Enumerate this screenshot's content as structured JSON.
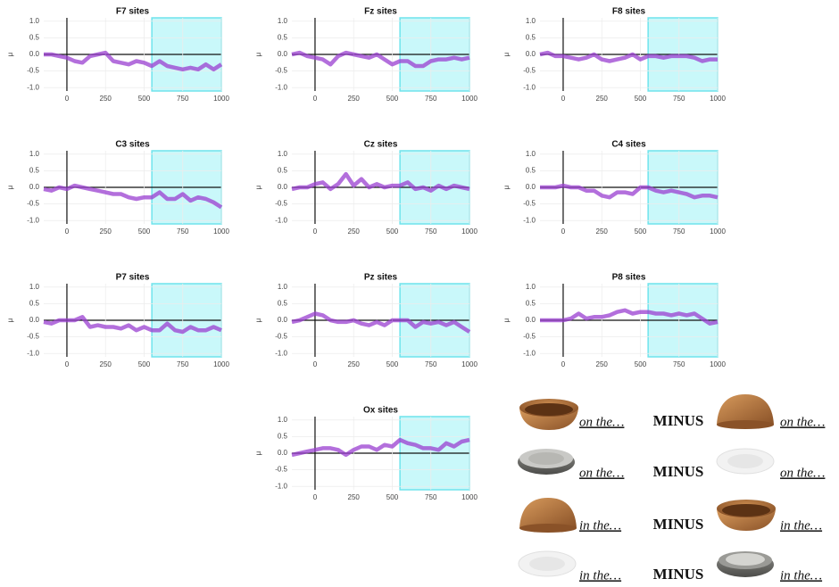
{
  "chart_data": [
    {
      "type": "line",
      "title": "F7 sites",
      "ylabel": "μ",
      "color": "#9a3fd0",
      "highlight": [
        550,
        1000
      ],
      "x": [
        -150,
        -100,
        -50,
        0,
        50,
        100,
        150,
        200,
        250,
        300,
        350,
        400,
        450,
        500,
        550,
        600,
        650,
        700,
        750,
        800,
        850,
        900,
        950,
        1000
      ],
      "values": [
        0,
        0,
        -0.05,
        -0.1,
        -0.2,
        -0.25,
        -0.05,
        0,
        0.05,
        -0.2,
        -0.25,
        -0.3,
        -0.2,
        -0.25,
        -0.35,
        -0.2,
        -0.35,
        -0.4,
        -0.45,
        -0.4,
        -0.45,
        -0.3,
        -0.45,
        -0.3
      ],
      "xlim": [
        -150,
        1000
      ],
      "ylim": [
        -1.1,
        1.1
      ],
      "xticks": [
        0,
        250,
        500,
        750,
        1000
      ],
      "yticks": [
        {
          "value": -1,
          "label": "-1.0"
        },
        {
          "value": -0.5,
          "label": "-0.5"
        },
        {
          "value": 0,
          "label": "0.0"
        },
        {
          "value": 0.5,
          "label": "0.5"
        },
        {
          "value": 1,
          "label": "1.0"
        }
      ],
      "grid": true
    },
    {
      "type": "line",
      "title": "Fz sites",
      "ylabel": "μ",
      "color": "#9a3fd0",
      "highlight": [
        550,
        1000
      ],
      "x": [
        -150,
        -100,
        -50,
        0,
        50,
        100,
        150,
        200,
        250,
        300,
        350,
        400,
        450,
        500,
        550,
        600,
        650,
        700,
        750,
        800,
        850,
        900,
        950,
        1000
      ],
      "values": [
        0,
        0.05,
        -0.05,
        -0.1,
        -0.15,
        -0.3,
        -0.05,
        0.05,
        0,
        -0.05,
        -0.1,
        0,
        -0.15,
        -0.3,
        -0.2,
        -0.2,
        -0.35,
        -0.35,
        -0.2,
        -0.15,
        -0.15,
        -0.1,
        -0.15,
        -0.1
      ],
      "xlim": [
        -150,
        1000
      ],
      "ylim": [
        -1.1,
        1.1
      ],
      "xticks": [
        0,
        250,
        500,
        750,
        1000
      ],
      "yticks": [
        {
          "value": -1,
          "label": "-1.0"
        },
        {
          "value": -0.5,
          "label": "-0.5"
        },
        {
          "value": 0,
          "label": "0.0"
        },
        {
          "value": 0.5,
          "label": "0.5"
        },
        {
          "value": 1,
          "label": "1.0"
        }
      ],
      "grid": true
    },
    {
      "type": "line",
      "title": "F8 sites",
      "ylabel": "μ",
      "color": "#9a3fd0",
      "highlight": [
        550,
        1000
      ],
      "x": [
        -150,
        -100,
        -50,
        0,
        50,
        100,
        150,
        200,
        250,
        300,
        350,
        400,
        450,
        500,
        550,
        600,
        650,
        700,
        750,
        800,
        850,
        900,
        950,
        1000
      ],
      "values": [
        0,
        0.05,
        -0.05,
        -0.05,
        -0.1,
        -0.15,
        -0.1,
        0,
        -0.15,
        -0.2,
        -0.15,
        -0.1,
        0,
        -0.15,
        -0.05,
        -0.05,
        -0.1,
        -0.05,
        -0.05,
        -0.05,
        -0.1,
        -0.2,
        -0.15,
        -0.15
      ],
      "xlim": [
        -150,
        1000
      ],
      "ylim": [
        -1.1,
        1.1
      ],
      "xticks": [
        0,
        250,
        500,
        750,
        1000
      ],
      "yticks": [
        {
          "value": -1,
          "label": "-1.0"
        },
        {
          "value": -0.5,
          "label": "-0.5"
        },
        {
          "value": 0,
          "label": "0.0"
        },
        {
          "value": 0.5,
          "label": "0.5"
        },
        {
          "value": 1,
          "label": "1.0"
        }
      ],
      "grid": true
    },
    {
      "type": "line",
      "title": "C3 sites",
      "ylabel": "μ",
      "color": "#9a3fd0",
      "highlight": [
        550,
        1000
      ],
      "x": [
        -150,
        -100,
        -50,
        0,
        50,
        100,
        150,
        200,
        250,
        300,
        350,
        400,
        450,
        500,
        550,
        600,
        650,
        700,
        750,
        800,
        850,
        900,
        950,
        1000
      ],
      "values": [
        -0.05,
        -0.1,
        0,
        -0.05,
        0.05,
        0,
        -0.05,
        -0.1,
        -0.15,
        -0.2,
        -0.2,
        -0.3,
        -0.35,
        -0.3,
        -0.3,
        -0.15,
        -0.35,
        -0.35,
        -0.2,
        -0.4,
        -0.3,
        -0.35,
        -0.45,
        -0.6
      ],
      "xlim": [
        -150,
        1000
      ],
      "ylim": [
        -1.1,
        1.1
      ],
      "xticks": [
        0,
        250,
        500,
        750,
        1000
      ],
      "yticks": [
        {
          "value": -1,
          "label": "-1.0"
        },
        {
          "value": -0.5,
          "label": "-0.5"
        },
        {
          "value": 0,
          "label": "0.0"
        },
        {
          "value": 0.5,
          "label": "0.5"
        },
        {
          "value": 1,
          "label": "1.0"
        }
      ],
      "grid": true
    },
    {
      "type": "line",
      "title": "Cz sites",
      "ylabel": "μ",
      "color": "#9a3fd0",
      "highlight": [
        550,
        1000
      ],
      "x": [
        -150,
        -100,
        -50,
        0,
        50,
        100,
        150,
        200,
        250,
        300,
        350,
        400,
        450,
        500,
        550,
        600,
        650,
        700,
        750,
        800,
        850,
        900,
        950,
        1000
      ],
      "values": [
        -0.05,
        0,
        0,
        0.1,
        0.15,
        -0.05,
        0.1,
        0.4,
        0.05,
        0.25,
        0,
        0.1,
        0,
        0.05,
        0.05,
        0.15,
        -0.05,
        0,
        -0.1,
        0.05,
        -0.05,
        0.05,
        0,
        -0.05
      ],
      "xlim": [
        -150,
        1000
      ],
      "ylim": [
        -1.1,
        1.1
      ],
      "xticks": [
        0,
        250,
        500,
        750,
        1000
      ],
      "yticks": [
        {
          "value": -1,
          "label": "-1.0"
        },
        {
          "value": -0.5,
          "label": "-0.5"
        },
        {
          "value": 0,
          "label": "0.0"
        },
        {
          "value": 0.5,
          "label": "0.5"
        },
        {
          "value": 1,
          "label": "1.0"
        }
      ],
      "grid": true
    },
    {
      "type": "line",
      "title": "C4 sites",
      "ylabel": "μ",
      "color": "#9a3fd0",
      "highlight": [
        550,
        1000
      ],
      "x": [
        -150,
        -100,
        -50,
        0,
        50,
        100,
        150,
        200,
        250,
        300,
        350,
        400,
        450,
        500,
        550,
        600,
        650,
        700,
        750,
        800,
        850,
        900,
        950,
        1000
      ],
      "values": [
        0,
        0,
        0,
        0.05,
        0,
        0,
        -0.1,
        -0.1,
        -0.25,
        -0.3,
        -0.15,
        -0.15,
        -0.2,
        0,
        0,
        -0.1,
        -0.15,
        -0.1,
        -0.15,
        -0.2,
        -0.3,
        -0.25,
        -0.25,
        -0.3
      ],
      "xlim": [
        -150,
        1000
      ],
      "ylim": [
        -1.1,
        1.1
      ],
      "xticks": [
        0,
        250,
        500,
        750,
        1000
      ],
      "yticks": [
        {
          "value": -1,
          "label": "-1.0"
        },
        {
          "value": -0.5,
          "label": "-0.5"
        },
        {
          "value": 0,
          "label": "0.0"
        },
        {
          "value": 0.5,
          "label": "0.5"
        },
        {
          "value": 1,
          "label": "1.0"
        }
      ],
      "grid": true
    },
    {
      "type": "line",
      "title": "P7 sites",
      "ylabel": "μ",
      "color": "#9a3fd0",
      "highlight": [
        550,
        1000
      ],
      "x": [
        -150,
        -100,
        -50,
        0,
        50,
        100,
        150,
        200,
        250,
        300,
        350,
        400,
        450,
        500,
        550,
        600,
        650,
        700,
        750,
        800,
        850,
        900,
        950,
        1000
      ],
      "values": [
        -0.05,
        -0.1,
        0,
        0,
        0,
        0.1,
        -0.2,
        -0.15,
        -0.2,
        -0.2,
        -0.25,
        -0.15,
        -0.3,
        -0.2,
        -0.3,
        -0.3,
        -0.1,
        -0.3,
        -0.35,
        -0.2,
        -0.3,
        -0.3,
        -0.2,
        -0.3
      ],
      "xlim": [
        -150,
        1000
      ],
      "ylim": [
        -1.1,
        1.1
      ],
      "xticks": [
        0,
        250,
        500,
        750,
        1000
      ],
      "yticks": [
        {
          "value": -1,
          "label": "-1.0"
        },
        {
          "value": -0.5,
          "label": "-0.5"
        },
        {
          "value": 0,
          "label": "0.0"
        },
        {
          "value": 0.5,
          "label": "0.5"
        },
        {
          "value": 1,
          "label": "1.0"
        }
      ],
      "grid": true
    },
    {
      "type": "line",
      "title": "Pz sites",
      "ylabel": "μ",
      "color": "#9a3fd0",
      "highlight": [
        550,
        1000
      ],
      "x": [
        -150,
        -100,
        -50,
        0,
        50,
        100,
        150,
        200,
        250,
        300,
        350,
        400,
        450,
        500,
        550,
        600,
        650,
        700,
        750,
        800,
        850,
        900,
        950,
        1000
      ],
      "values": [
        -0.05,
        0,
        0.1,
        0.2,
        0.15,
        0,
        -0.05,
        -0.05,
        0,
        -0.1,
        -0.15,
        -0.05,
        -0.15,
        0,
        0,
        0,
        -0.2,
        -0.05,
        -0.1,
        -0.05,
        -0.15,
        -0.05,
        -0.2,
        -0.35
      ],
      "xlim": [
        -150,
        1000
      ],
      "ylim": [
        -1.1,
        1.1
      ],
      "xticks": [
        0,
        250,
        500,
        750,
        1000
      ],
      "yticks": [
        {
          "value": -1,
          "label": "-1.0"
        },
        {
          "value": -0.5,
          "label": "-0.5"
        },
        {
          "value": 0,
          "label": "0.0"
        },
        {
          "value": 0.5,
          "label": "0.5"
        },
        {
          "value": 1,
          "label": "1.0"
        }
      ],
      "grid": true
    },
    {
      "type": "line",
      "title": "P8 sites",
      "ylabel": "μ",
      "color": "#9a3fd0",
      "highlight": [
        550,
        1000
      ],
      "x": [
        -150,
        -100,
        -50,
        0,
        50,
        100,
        150,
        200,
        250,
        300,
        350,
        400,
        450,
        500,
        550,
        600,
        650,
        700,
        750,
        800,
        850,
        900,
        950,
        1000
      ],
      "values": [
        0,
        0,
        0,
        0,
        0.05,
        0.2,
        0.05,
        0.1,
        0.1,
        0.15,
        0.25,
        0.3,
        0.2,
        0.25,
        0.25,
        0.2,
        0.2,
        0.15,
        0.2,
        0.15,
        0.2,
        0.05,
        -0.1,
        -0.05
      ],
      "xlim": [
        -150,
        1000
      ],
      "ylim": [
        -1.1,
        1.1
      ],
      "xticks": [
        0,
        250,
        500,
        750,
        1000
      ],
      "yticks": [
        {
          "value": -1,
          "label": "-1.0"
        },
        {
          "value": -0.5,
          "label": "-0.5"
        },
        {
          "value": 0,
          "label": "0.0"
        },
        {
          "value": 0.5,
          "label": "0.5"
        },
        {
          "value": 1,
          "label": "1.0"
        }
      ],
      "grid": true
    },
    {
      "type": "line",
      "title": "Ox sites",
      "ylabel": "μ",
      "color": "#9a3fd0",
      "highlight": [
        550,
        1000
      ],
      "x": [
        -150,
        -100,
        -50,
        0,
        50,
        100,
        150,
        200,
        250,
        300,
        350,
        400,
        450,
        500,
        550,
        600,
        650,
        700,
        750,
        800,
        850,
        900,
        950,
        1000
      ],
      "values": [
        -0.05,
        0,
        0.05,
        0.1,
        0.15,
        0.15,
        0.1,
        -0.05,
        0.1,
        0.2,
        0.2,
        0.1,
        0.25,
        0.2,
        0.4,
        0.3,
        0.25,
        0.15,
        0.15,
        0.1,
        0.3,
        0.2,
        0.35,
        0.4
      ],
      "xlim": [
        -150,
        1000
      ],
      "ylim": [
        -1.1,
        1.1
      ],
      "xticks": [
        0,
        250,
        500,
        750,
        1000
      ],
      "yticks": [
        {
          "value": -1,
          "label": "-1.0"
        },
        {
          "value": -0.5,
          "label": "-0.5"
        },
        {
          "value": 0,
          "label": "0.0"
        },
        {
          "value": 0.5,
          "label": "0.5"
        },
        {
          "value": 1,
          "label": "1.0"
        }
      ],
      "grid": true
    }
  ],
  "contrasts": [
    {
      "left": "on the…",
      "operator": "MINUS",
      "right": "on the…"
    },
    {
      "left": "on the…",
      "operator": "MINUS",
      "right": "on the…"
    },
    {
      "left": "in the…",
      "operator": "MINUS",
      "right": "in the…"
    },
    {
      "left": "in the…",
      "operator": "MINUS",
      "right": "in the…"
    }
  ]
}
